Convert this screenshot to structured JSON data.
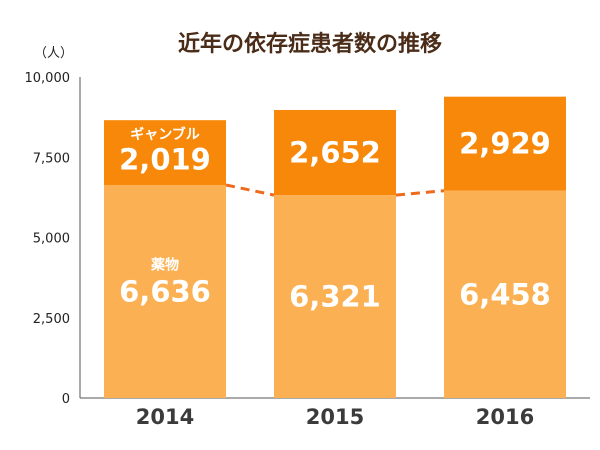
{
  "chart_data": {
    "type": "bar",
    "stacked": true,
    "title": "近年の依存症患者数の推移",
    "y_unit": "（人）",
    "categories": [
      "2014",
      "2015",
      "2016"
    ],
    "ylim": [
      0,
      10000
    ],
    "yticks": [
      "0",
      "2,500",
      "5,000",
      "7,500",
      "10,000"
    ],
    "series": [
      {
        "name": "薬物",
        "values": [
          6636,
          6321,
          6458
        ],
        "labels": [
          "6,636",
          "6,321",
          "6,458"
        ],
        "color": "#fbb153"
      },
      {
        "name": "ギャンブル",
        "values": [
          2019,
          2652,
          2929
        ],
        "labels": [
          "2,019",
          "2,652",
          "2,929"
        ],
        "color": "#f7880a"
      }
    ],
    "connector_color": "#ee6a1c",
    "legend": "inline"
  }
}
